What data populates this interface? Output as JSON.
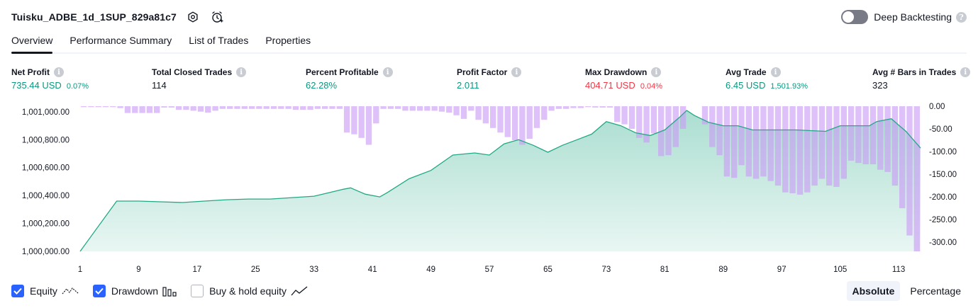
{
  "header": {
    "title": "Tuisku_ADBE_1d_1SUP_829a81c7",
    "settings_icon": "settings-gear-icon",
    "alert_icon": "add-alert-clock-icon"
  },
  "deep_backtesting": {
    "label": "Deep Backtesting",
    "enabled": false
  },
  "tabs": [
    {
      "label": "Overview",
      "active": true
    },
    {
      "label": "Performance Summary",
      "active": false
    },
    {
      "label": "List of Trades",
      "active": false
    },
    {
      "label": "Properties",
      "active": false
    }
  ],
  "metrics": {
    "net_profit": {
      "label": "Net Profit",
      "value": "735.44 USD",
      "pct": "0.07%"
    },
    "total_closed_trades": {
      "label": "Total Closed Trades",
      "value": "114"
    },
    "percent_profitable": {
      "label": "Percent Profitable",
      "value": "62.28%"
    },
    "profit_factor": {
      "label": "Profit Factor",
      "value": "2.011"
    },
    "max_drawdown": {
      "label": "Max Drawdown",
      "value": "404.71 USD",
      "pct": "0.04%"
    },
    "avg_trade": {
      "label": "Avg Trade",
      "value": "6.45 USD",
      "pct": "1,501.93%"
    },
    "avg_bars": {
      "label": "Avg # Bars in Trades",
      "value": "323"
    }
  },
  "legend": {
    "equity": {
      "label": "Equity",
      "checked": true
    },
    "drawdown": {
      "label": "Drawdown",
      "checked": true
    },
    "buy_hold": {
      "label": "Buy & hold equity",
      "checked": false
    }
  },
  "mode": {
    "absolute_label": "Absolute",
    "percentage_label": "Percentage",
    "active": "absolute"
  },
  "colors": {
    "positive": "#089981",
    "negative": "#f23645",
    "equity_line": "#22a884",
    "drawdown_bar": "#d6b4fa",
    "accent": "#2962ff"
  },
  "chart_data": {
    "type": "area",
    "title": "",
    "xlabel": "",
    "ylabel": "",
    "x_ticks": [
      "1",
      "9",
      "17",
      "25",
      "33",
      "41",
      "49",
      "57",
      "65",
      "73",
      "81",
      "89",
      "97",
      "105",
      "113"
    ],
    "x_range": [
      1,
      116
    ],
    "y_left_ticks": [
      "1,000,000.00",
      "1,000,200.00",
      "1,000,400.00",
      "1,000,600.00",
      "1,000,800.00",
      "1,001,000.00"
    ],
    "y_left_range": [
      1000000,
      1001040
    ],
    "y_right_ticks": [
      "0.00",
      "-50.00",
      "-100.00",
      "-150.00",
      "-200.00",
      "-250.00",
      "-300.00"
    ],
    "y_right_range": [
      -320,
      0
    ],
    "series": [
      {
        "name": "Equity",
        "type": "area",
        "x": [
          1,
          6,
          9,
          12,
          15,
          18,
          21,
          24,
          27,
          30,
          33,
          35,
          37,
          38,
          40,
          42,
          43,
          46,
          49,
          52,
          55,
          57,
          59,
          61,
          63,
          65,
          67,
          69,
          71,
          73,
          75,
          77,
          79,
          81,
          83,
          84,
          85,
          87,
          89,
          91,
          93,
          95,
          97,
          99,
          101,
          103,
          105,
          107,
          109,
          110,
          112,
          114,
          116
        ],
        "values": [
          1000000,
          1000360,
          1000360,
          1000355,
          1000350,
          1000360,
          1000370,
          1000375,
          1000375,
          1000385,
          1000395,
          1000420,
          1000445,
          1000455,
          1000410,
          1000390,
          1000420,
          1000520,
          1000580,
          1000690,
          1000705,
          1000690,
          1000770,
          1000800,
          1000760,
          1000710,
          1000760,
          1000800,
          1000840,
          1000930,
          1000900,
          1000850,
          1000830,
          1000870,
          1000960,
          1001010,
          1000975,
          1000925,
          1000900,
          1000900,
          1000870,
          1000870,
          1000870,
          1000870,
          1000865,
          1000860,
          1000900,
          1000900,
          1000900,
          1000930,
          1000950,
          1000860,
          1000740
        ]
      },
      {
        "name": "Drawdown",
        "type": "bar",
        "x": [
          1,
          2,
          3,
          4,
          5,
          6,
          7,
          8,
          9,
          10,
          11,
          12,
          13,
          14,
          15,
          16,
          17,
          18,
          19,
          20,
          21,
          22,
          23,
          24,
          25,
          26,
          27,
          28,
          29,
          30,
          31,
          32,
          33,
          34,
          35,
          36,
          37,
          38,
          39,
          40,
          41,
          42,
          43,
          44,
          45,
          46,
          47,
          48,
          49,
          50,
          51,
          52,
          53,
          54,
          55,
          56,
          57,
          58,
          59,
          60,
          61,
          62,
          63,
          64,
          65,
          66,
          67,
          68,
          69,
          70,
          71,
          72,
          73,
          74,
          75,
          76,
          77,
          78,
          79,
          80,
          81,
          82,
          83,
          84,
          85,
          86,
          87,
          88,
          89,
          90,
          91,
          92,
          93,
          94,
          95,
          96,
          97,
          98,
          99,
          100,
          101,
          102,
          103,
          104,
          105,
          106,
          107,
          108,
          109,
          110,
          111,
          112,
          113,
          114,
          115
        ],
        "values": [
          -2,
          -2,
          -2,
          -2,
          -2,
          -4,
          -15,
          -15,
          -15,
          -15,
          -15,
          -3,
          -3,
          -8,
          -8,
          -10,
          -12,
          -14,
          -10,
          -6,
          -6,
          -6,
          -6,
          -6,
          -6,
          -6,
          -6,
          -6,
          -6,
          -8,
          -8,
          -8,
          -6,
          -6,
          -6,
          -6,
          -58,
          -62,
          -70,
          -85,
          -38,
          -6,
          -6,
          -6,
          -10,
          -10,
          -10,
          -10,
          -10,
          -12,
          -14,
          -20,
          -28,
          -10,
          -30,
          -38,
          -48,
          -58,
          -68,
          -75,
          -85,
          -72,
          -48,
          -30,
          -10,
          -6,
          -6,
          -4,
          -4,
          -2,
          -3,
          -3,
          -3,
          -35,
          -40,
          -50,
          -70,
          -80,
          -60,
          -110,
          -108,
          -90,
          -50,
          0,
          0,
          -40,
          -90,
          -108,
          -155,
          -158,
          -130,
          -155,
          -160,
          -155,
          -165,
          -175,
          -190,
          -192,
          -195,
          -190,
          -175,
          -160,
          -175,
          -178,
          -160,
          -120,
          -125,
          -128,
          -128,
          -140,
          -145,
          -175,
          -225,
          -285,
          -320
        ]
      }
    ],
    "grid": false,
    "legend_position": "bottom-left"
  }
}
